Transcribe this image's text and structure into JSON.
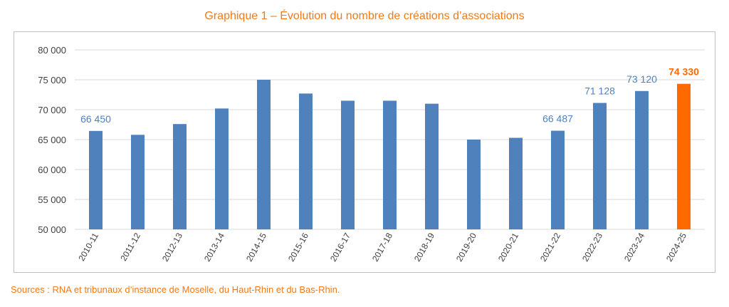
{
  "chart_data": {
    "type": "bar",
    "title": "Graphique 1 – Évolution du nombre de créations d’associations",
    "xlabel": "",
    "ylabel": "",
    "categories": [
      "2010-11",
      "2011-12",
      "2012-13",
      "2013-14",
      "2014-15",
      "2015-16",
      "2016-17",
      "2017-18",
      "2018-19",
      "2019-20",
      "2020-21",
      "2021-22",
      "2022-23",
      "2023-24",
      "2024-25"
    ],
    "values": [
      66450,
      65800,
      67600,
      70200,
      75000,
      72700,
      71500,
      71500,
      71000,
      65000,
      65300,
      66487,
      71128,
      73120,
      74330
    ],
    "data_labels": [
      {
        "index": 0,
        "text": "66 450"
      },
      {
        "index": 11,
        "text": "66 487"
      },
      {
        "index": 12,
        "text": "71 128"
      },
      {
        "index": 13,
        "text": "73 120"
      },
      {
        "index": 14,
        "text": "74 330"
      }
    ],
    "ylim": [
      50000,
      80000
    ],
    "yticks": [
      50000,
      55000,
      60000,
      65000,
      70000,
      75000,
      80000
    ],
    "ytick_labels": [
      "50 000",
      "55 000",
      "60 000",
      "65 000",
      "70 000",
      "75 000",
      "80 000"
    ],
    "grid": true,
    "legend": "none",
    "colors": {
      "bar": "#4f81bd",
      "highlight_bar": "#ff6a00",
      "data_label": "#4f81bd",
      "highlight_label": "#ff6a00",
      "grid": "#d9d9d9",
      "title": "#f07a1a"
    },
    "highlight_index": 14
  },
  "source_note": "Sources : RNA et tribunaux d’instance de Moselle, du Haut-Rhin et du Bas-Rhin."
}
